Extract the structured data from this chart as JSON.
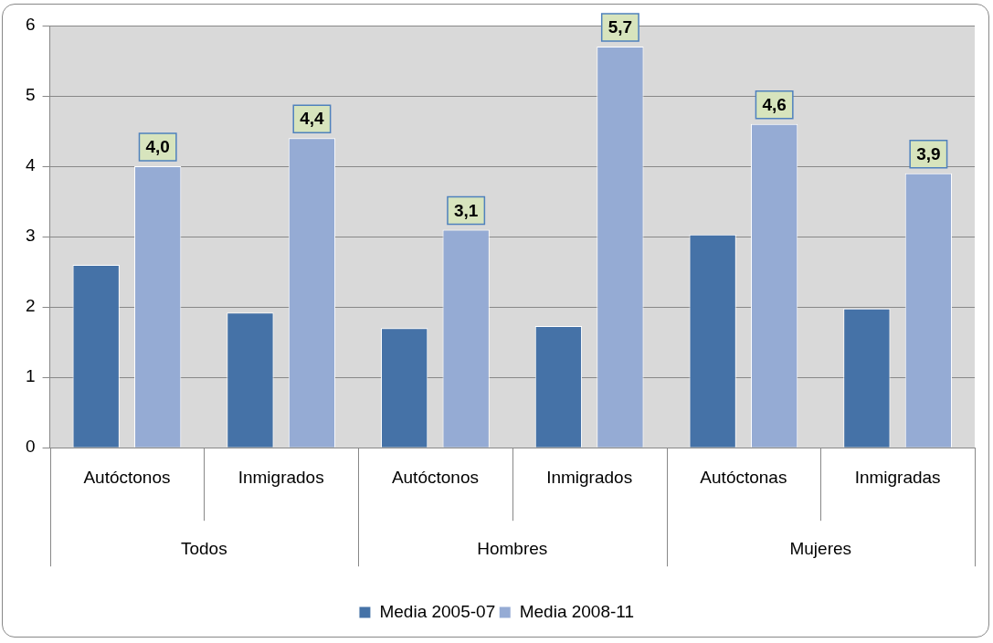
{
  "chart_data": {
    "type": "bar",
    "categories": [
      "Autóctonos",
      "Inmigrados",
      "Autóctonos",
      "Inmigrados",
      "Autóctonas",
      "Inmigradas"
    ],
    "series": [
      {
        "name": "Media 2005-07",
        "color": "#4572a7",
        "values": [
          2.6,
          1.92,
          1.7,
          1.73,
          3.03,
          1.98
        ]
      },
      {
        "name": "Media 2008-11",
        "color": "#95abd4",
        "values": [
          4.0,
          4.4,
          3.1,
          5.7,
          4.6,
          3.9
        ],
        "value_labels": [
          "4,0",
          "4,4",
          "3,1",
          "5,7",
          "4,6",
          "3,9"
        ]
      }
    ],
    "annotations": [
      "Todos",
      "Hombres",
      "Mujeres"
    ],
    "ylim": [
      0,
      6
    ],
    "yticks": [
      0,
      1,
      2,
      3,
      4,
      5,
      6
    ],
    "grid": "y",
    "legend": "bottom"
  }
}
